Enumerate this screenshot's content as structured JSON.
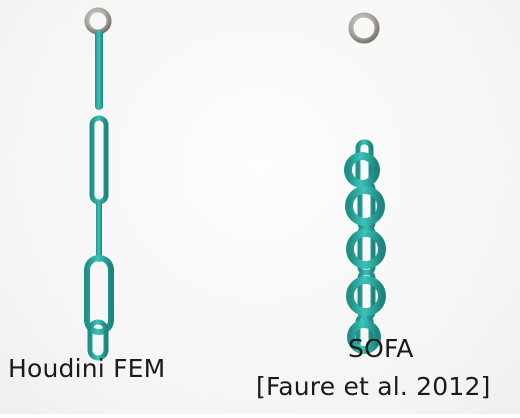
{
  "left_panel": {
    "label": "Houdini FEM"
  },
  "right_panel": {
    "label_line1": "SOFA",
    "label_line2": "[Faure et al. 2012]"
  },
  "colors": {
    "chain_fill": "#34b3ab",
    "chain_dark": "#1e8b84",
    "ring_metal": "#b9b4ac",
    "ring_metal_dark": "#7c776f",
    "text": "#1a1a1a"
  }
}
